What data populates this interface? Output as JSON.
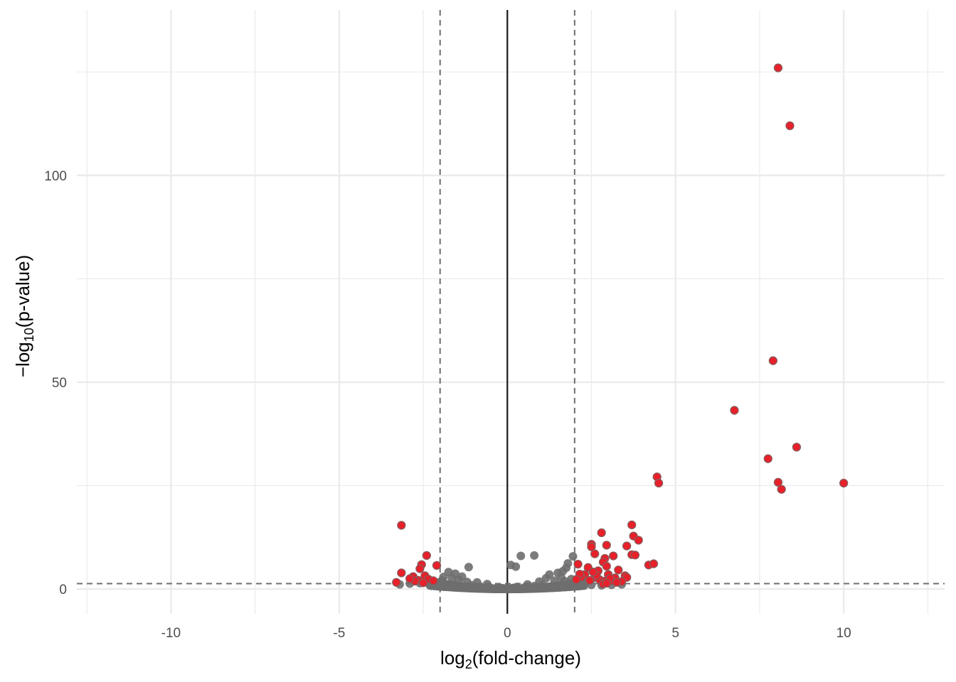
{
  "chart_data": {
    "type": "scatter",
    "title": "",
    "xlabel": {
      "prefix": "log",
      "sub": "2",
      "suffix": "(fold-change)"
    },
    "ylabel": {
      "prefix": "−log",
      "sub": "10",
      "suffix": "(p-value)"
    },
    "xlim": [
      -12.8,
      13
    ],
    "ylim": [
      -6,
      140
    ],
    "x_ticks": [
      -10,
      -5,
      0,
      5,
      10
    ],
    "x_tick_labels": [
      "-10",
      "-5",
      "0",
      "5",
      "10"
    ],
    "y_ticks": [
      0,
      50,
      100
    ],
    "y_tick_labels": [
      "0",
      "50",
      "100"
    ],
    "grid": true,
    "thresholds": {
      "log2fc": [
        -2,
        2
      ],
      "neg_log10_p": 1.3
    },
    "colors": {
      "significant": "#e8202a",
      "not_significant": "#6e6e6e",
      "threshold_line": "#6e6e6e",
      "zero_line": "#1a1a1a",
      "grid": "#ebebeb"
    },
    "series": [
      {
        "key": "significant",
        "points": [
          [
            8.05,
            126
          ],
          [
            8.4,
            112
          ],
          [
            7.9,
            55.2
          ],
          [
            6.75,
            43.2
          ],
          [
            8.6,
            34.3
          ],
          [
            7.75,
            31.5
          ],
          [
            8.05,
            25.8
          ],
          [
            8.15,
            24.1
          ],
          [
            10.0,
            25.6
          ],
          [
            4.45,
            27.1
          ],
          [
            4.5,
            25.6
          ],
          [
            3.7,
            15.5
          ],
          [
            3.75,
            12.8
          ],
          [
            3.9,
            11.8
          ],
          [
            3.55,
            10.4
          ],
          [
            3.7,
            8.3
          ],
          [
            3.8,
            8.2
          ],
          [
            4.2,
            5.8
          ],
          [
            4.35,
            6.1
          ],
          [
            2.8,
            13.6
          ],
          [
            2.5,
            10.8
          ],
          [
            2.5,
            10.2
          ],
          [
            2.95,
            10.6
          ],
          [
            2.6,
            8.5
          ],
          [
            2.9,
            7.4
          ],
          [
            3.15,
            8.0
          ],
          [
            2.85,
            6.5
          ],
          [
            2.95,
            5.5
          ],
          [
            2.1,
            6.0
          ],
          [
            2.4,
            5.2
          ],
          [
            3.3,
            4.6
          ],
          [
            2.7,
            4.4
          ],
          [
            2.3,
            3.5
          ],
          [
            3.5,
            3.2
          ],
          [
            3.0,
            3.5
          ],
          [
            2.6,
            2.8
          ],
          [
            2.2,
            2.9
          ],
          [
            3.2,
            2.7
          ],
          [
            2.75,
            2.2
          ],
          [
            3.55,
            2.8
          ],
          [
            2.45,
            2.1
          ],
          [
            3.1,
            2.0
          ],
          [
            2.9,
            1.9
          ],
          [
            3.4,
            1.8
          ],
          [
            2.15,
            3.6
          ],
          [
            2.05,
            2.3
          ],
          [
            2.65,
            3.3
          ],
          [
            3.05,
            2.6
          ],
          [
            2.55,
            4.1
          ],
          [
            3.25,
            1.6
          ],
          [
            2.85,
            1.2
          ],
          [
            2.95,
            1.4
          ],
          [
            -3.15,
            15.4
          ],
          [
            -2.4,
            8.1
          ],
          [
            -2.1,
            5.7
          ],
          [
            -2.55,
            5.9
          ],
          [
            -2.6,
            4.9
          ],
          [
            -3.15,
            3.9
          ],
          [
            -2.8,
            3.0
          ],
          [
            -2.45,
            3.2
          ],
          [
            -2.35,
            2.4
          ],
          [
            -2.65,
            2.1
          ],
          [
            -2.75,
            1.9
          ],
          [
            -3.3,
            1.6
          ],
          [
            -2.9,
            2.5
          ],
          [
            -2.2,
            2.0
          ],
          [
            -2.5,
            1.5
          ]
        ]
      },
      {
        "key": "not_significant",
        "points": [
          [
            1.95,
            7.9
          ],
          [
            0.8,
            8.1
          ],
          [
            0.4,
            8.0
          ],
          [
            0.1,
            5.8
          ],
          [
            0.25,
            5.4
          ],
          [
            -1.15,
            5.3
          ],
          [
            -1.75,
            4.1
          ],
          [
            -1.55,
            3.7
          ],
          [
            1.8,
            6.2
          ],
          [
            1.75,
            5.1
          ],
          [
            1.65,
            4.3
          ],
          [
            1.5,
            3.9
          ],
          [
            -1.35,
            3.0
          ],
          [
            -1.65,
            2.6
          ],
          [
            1.25,
            3.5
          ],
          [
            1.15,
            2.6
          ],
          [
            1.6,
            2.8
          ],
          [
            -1.9,
            2.9
          ],
          [
            -1.45,
            2.2
          ],
          [
            -1.95,
            2.0
          ],
          [
            1.9,
            2.4
          ],
          [
            1.4,
            2.0
          ],
          [
            0.95,
            1.8
          ],
          [
            -0.9,
            1.6
          ],
          [
            -1.2,
            1.7
          ],
          [
            1.7,
            1.9
          ],
          [
            -0.6,
            1.2
          ],
          [
            0.6,
            1.1
          ],
          [
            -1.05,
            0.9
          ],
          [
            1.05,
            0.9
          ],
          [
            -1.8,
            1.0
          ],
          [
            -2.6,
            1.4
          ],
          [
            -2.9,
            1.3
          ],
          [
            -3.2,
            1.1
          ],
          [
            -2.3,
            1.1
          ],
          [
            2.2,
            1.2
          ],
          [
            2.5,
            1.0
          ],
          [
            3.1,
            1.0
          ],
          [
            3.4,
            1.1
          ],
          [
            2.8,
            0.9
          ],
          [
            -0.3,
            0.4
          ],
          [
            0.3,
            0.5
          ],
          [
            -0.8,
            0.6
          ],
          [
            0.8,
            0.7
          ],
          [
            -1.5,
            0.8
          ],
          [
            1.5,
            0.8
          ],
          [
            -0.15,
            0.2
          ],
          [
            0.15,
            0.2
          ],
          [
            0.5,
            0.35
          ],
          [
            -0.5,
            0.3
          ],
          [
            1.3,
            0.6
          ],
          [
            -1.3,
            0.6
          ],
          [
            2.0,
            0.9
          ],
          [
            -2.0,
            0.9
          ],
          [
            0.0,
            0.05
          ],
          [
            -0.05,
            0.15
          ],
          [
            0.05,
            0.1
          ],
          [
            -0.2,
            0.25
          ],
          [
            0.2,
            0.3
          ]
        ]
      }
    ]
  }
}
